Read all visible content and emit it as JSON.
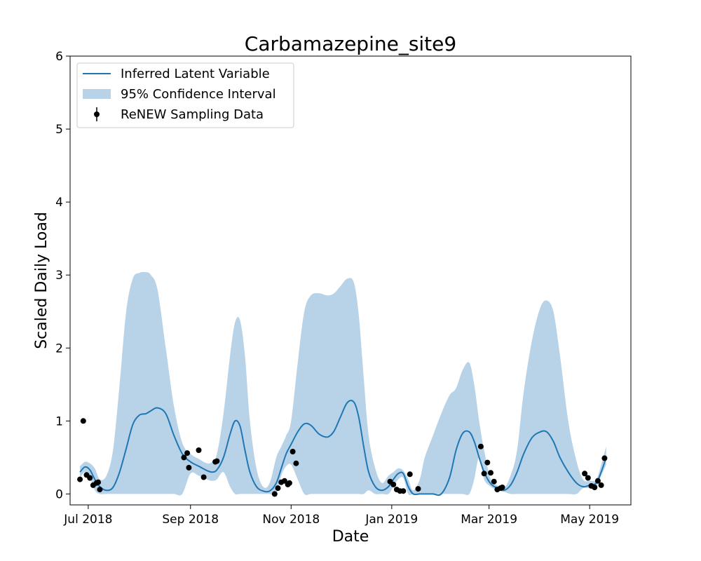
{
  "chart_data": {
    "type": "line",
    "title": "Carbamazepine_site9",
    "xlabel": "Date",
    "ylabel": "Scaled Daily Load",
    "xlim": [
      "2018-06-20",
      "2019-05-26"
    ],
    "ylim": [
      -0.15,
      6
    ],
    "x_ticks": [
      "2018-07-01",
      "2018-09-01",
      "2018-11-01",
      "2019-01-01",
      "2019-03-01",
      "2019-05-01"
    ],
    "x_tick_labels": [
      "Jul 2018",
      "Sep 2018",
      "Nov 2018",
      "Jan 2019",
      "Mar 2019",
      "May 2019"
    ],
    "y_ticks": [
      0,
      1,
      2,
      3,
      4,
      5,
      6
    ],
    "y_tick_labels": [
      "0",
      "1",
      "2",
      "3",
      "4",
      "5",
      "6"
    ],
    "grid": false,
    "legend": {
      "placement": "top-left",
      "entries": [
        "Inferred Latent Variable",
        "95% Confidence Interval",
        "ReNEW Sampling Data"
      ]
    },
    "colors": {
      "line": "#1f77b4",
      "band": "#b8d3e8",
      "points": "#000000"
    },
    "series": [
      {
        "name": "Inferred Latent Variable",
        "kind": "line",
        "x": [
          "2018-06-26",
          "2018-06-29",
          "2018-07-02",
          "2018-07-05",
          "2018-07-08",
          "2018-07-12",
          "2018-07-16",
          "2018-07-20",
          "2018-07-24",
          "2018-07-28",
          "2018-08-01",
          "2018-08-05",
          "2018-08-08",
          "2018-08-12",
          "2018-08-17",
          "2018-08-22",
          "2018-08-27",
          "2018-09-01",
          "2018-09-06",
          "2018-09-11",
          "2018-09-14",
          "2018-09-17",
          "2018-09-21",
          "2018-09-25",
          "2018-09-28",
          "2018-10-01",
          "2018-10-04",
          "2018-10-07",
          "2018-10-11",
          "2018-10-15",
          "2018-10-19",
          "2018-10-23",
          "2018-10-26",
          "2018-10-29",
          "2018-11-01",
          "2018-11-05",
          "2018-11-09",
          "2018-11-13",
          "2018-11-18",
          "2018-11-23",
          "2018-11-27",
          "2018-12-01",
          "2018-12-05",
          "2018-12-09",
          "2018-12-12",
          "2018-12-15",
          "2018-12-18",
          "2018-12-22",
          "2018-12-26",
          "2018-12-30",
          "2019-01-02",
          "2019-01-05",
          "2019-01-08",
          "2019-01-11",
          "2019-01-14",
          "2019-01-18",
          "2019-01-21",
          "2019-01-26",
          "2019-01-31",
          "2019-02-05",
          "2019-02-09",
          "2019-02-13",
          "2019-02-17",
          "2019-02-20",
          "2019-02-23",
          "2019-02-26",
          "2019-03-02",
          "2019-03-06",
          "2019-03-10",
          "2019-03-14",
          "2019-03-18",
          "2019-03-22",
          "2019-03-27",
          "2019-04-01",
          "2019-04-05",
          "2019-04-09",
          "2019-04-13",
          "2019-04-18",
          "2019-04-23",
          "2019-04-27",
          "2019-05-01",
          "2019-05-05",
          "2019-05-08",
          "2019-05-11"
        ],
        "y": [
          0.3,
          0.37,
          0.33,
          0.2,
          0.1,
          0.05,
          0.09,
          0.3,
          0.62,
          0.95,
          1.08,
          1.1,
          1.14,
          1.18,
          1.1,
          0.8,
          0.55,
          0.44,
          0.38,
          0.32,
          0.3,
          0.33,
          0.5,
          0.82,
          1.0,
          0.93,
          0.6,
          0.3,
          0.1,
          0.04,
          0.04,
          0.15,
          0.35,
          0.55,
          0.68,
          0.85,
          0.96,
          0.94,
          0.82,
          0.78,
          0.86,
          1.06,
          1.25,
          1.26,
          1.05,
          0.65,
          0.3,
          0.1,
          0.05,
          0.1,
          0.2,
          0.28,
          0.28,
          0.1,
          0.0,
          0.0,
          0.0,
          0.0,
          0.0,
          0.22,
          0.6,
          0.83,
          0.85,
          0.72,
          0.5,
          0.3,
          0.14,
          0.08,
          0.05,
          0.12,
          0.3,
          0.55,
          0.77,
          0.85,
          0.85,
          0.72,
          0.5,
          0.3,
          0.15,
          0.1,
          0.12,
          0.15,
          0.3,
          0.5
        ]
      },
      {
        "name": "95% Confidence Interval",
        "kind": "band",
        "x": [
          "2018-06-26",
          "2018-06-29",
          "2018-07-02",
          "2018-07-05",
          "2018-07-08",
          "2018-07-12",
          "2018-07-16",
          "2018-07-20",
          "2018-07-24",
          "2018-07-28",
          "2018-08-01",
          "2018-08-05",
          "2018-08-08",
          "2018-08-12",
          "2018-08-17",
          "2018-08-22",
          "2018-08-27",
          "2018-09-01",
          "2018-09-06",
          "2018-09-11",
          "2018-09-14",
          "2018-09-17",
          "2018-09-21",
          "2018-09-25",
          "2018-09-28",
          "2018-10-01",
          "2018-10-04",
          "2018-10-07",
          "2018-10-11",
          "2018-10-15",
          "2018-10-19",
          "2018-10-23",
          "2018-10-26",
          "2018-10-29",
          "2018-11-01",
          "2018-11-05",
          "2018-11-09",
          "2018-11-13",
          "2018-11-18",
          "2018-11-23",
          "2018-11-27",
          "2018-12-01",
          "2018-12-05",
          "2018-12-09",
          "2018-12-12",
          "2018-12-15",
          "2018-12-18",
          "2018-12-22",
          "2018-12-26",
          "2018-12-30",
          "2019-01-02",
          "2019-01-05",
          "2019-01-08",
          "2019-01-11",
          "2019-01-14",
          "2019-01-18",
          "2019-01-21",
          "2019-01-26",
          "2019-01-31",
          "2019-02-05",
          "2019-02-09",
          "2019-02-13",
          "2019-02-17",
          "2019-02-20",
          "2019-02-23",
          "2019-02-26",
          "2019-03-02",
          "2019-03-06",
          "2019-03-10",
          "2019-03-14",
          "2019-03-18",
          "2019-03-22",
          "2019-03-27",
          "2019-04-01",
          "2019-04-05",
          "2019-04-09",
          "2019-04-13",
          "2019-04-18",
          "2019-04-23",
          "2019-04-27",
          "2019-05-01",
          "2019-05-05",
          "2019-05-08",
          "2019-05-11"
        ],
        "lower": [
          0.22,
          0.3,
          0.22,
          0.05,
          0.0,
          0.0,
          0.0,
          0.0,
          0.0,
          0.0,
          0.0,
          0.0,
          0.0,
          0.0,
          0.0,
          0.0,
          0.0,
          0.28,
          0.25,
          0.2,
          0.18,
          0.2,
          0.3,
          0.1,
          0.0,
          0.0,
          0.0,
          0.0,
          0.0,
          0.0,
          0.0,
          0.0,
          0.25,
          0.38,
          0.4,
          0.2,
          0.0,
          0.0,
          0.0,
          0.0,
          0.0,
          0.0,
          0.0,
          0.0,
          0.0,
          0.0,
          0.05,
          0.0,
          0.0,
          0.0,
          0.1,
          0.2,
          0.22,
          0.0,
          0.0,
          0.0,
          0.0,
          0.0,
          0.0,
          0.0,
          0.0,
          0.0,
          0.0,
          0.2,
          0.5,
          0.2,
          0.1,
          0.05,
          0.03,
          0.0,
          0.0,
          0.0,
          0.0,
          0.0,
          0.0,
          0.0,
          0.0,
          0.0,
          0.0,
          0.08,
          0.08,
          0.1,
          0.25,
          0.4
        ],
        "upper": [
          0.38,
          0.44,
          0.42,
          0.35,
          0.2,
          0.25,
          0.6,
          1.5,
          2.5,
          2.95,
          3.03,
          3.04,
          3.0,
          2.8,
          2.0,
          1.2,
          0.7,
          0.55,
          0.48,
          0.42,
          0.44,
          0.55,
          1.1,
          1.9,
          2.35,
          2.38,
          1.9,
          1.0,
          0.35,
          0.1,
          0.15,
          0.5,
          0.65,
          0.8,
          1.0,
          1.8,
          2.5,
          2.72,
          2.75,
          2.72,
          2.75,
          2.85,
          2.95,
          2.9,
          2.45,
          1.6,
          0.8,
          0.35,
          0.15,
          0.25,
          0.3,
          0.35,
          0.32,
          0.2,
          0.05,
          0.2,
          0.5,
          0.8,
          1.1,
          1.35,
          1.45,
          1.7,
          1.8,
          1.5,
          1.0,
          0.6,
          0.2,
          0.12,
          0.08,
          0.25,
          0.6,
          1.4,
          2.1,
          2.55,
          2.65,
          2.5,
          1.9,
          1.0,
          0.45,
          0.2,
          0.18,
          0.2,
          0.4,
          0.65
        ]
      },
      {
        "name": "ReNEW Sampling Data",
        "kind": "scatter",
        "x": [
          "2018-06-26",
          "2018-06-28",
          "2018-06-30",
          "2018-07-02",
          "2018-07-04",
          "2018-07-06",
          "2018-07-07",
          "2018-07-08",
          "2018-08-28",
          "2018-08-30",
          "2018-08-31",
          "2018-09-06",
          "2018-09-09",
          "2018-09-16",
          "2018-09-17",
          "2018-10-22",
          "2018-10-24",
          "2018-10-26",
          "2018-10-28",
          "2018-10-30",
          "2018-11-02",
          "2018-11-04",
          "2018-10-31",
          "2018-12-31",
          "2019-01-02",
          "2019-01-04",
          "2019-01-06",
          "2019-01-08",
          "2019-01-12",
          "2019-01-17",
          "2019-02-24",
          "2019-02-26",
          "2019-02-28",
          "2019-03-02",
          "2019-03-04",
          "2019-03-06",
          "2019-03-08",
          "2019-03-09",
          "2019-04-28",
          "2019-04-30",
          "2019-05-02",
          "2019-05-04",
          "2019-05-06",
          "2019-05-08",
          "2019-05-10"
        ],
        "y": [
          0.2,
          1.0,
          0.26,
          0.22,
          0.12,
          0.15,
          0.16,
          0.06,
          0.5,
          0.56,
          0.36,
          0.6,
          0.23,
          0.44,
          0.45,
          0.0,
          0.08,
          0.16,
          0.18,
          0.13,
          0.58,
          0.42,
          0.15,
          0.17,
          0.13,
          0.06,
          0.04,
          0.04,
          0.27,
          0.07,
          0.65,
          0.28,
          0.43,
          0.29,
          0.17,
          0.06,
          0.08,
          0.09,
          0.28,
          0.22,
          0.11,
          0.09,
          0.18,
          0.12,
          0.49
        ]
      }
    ]
  }
}
